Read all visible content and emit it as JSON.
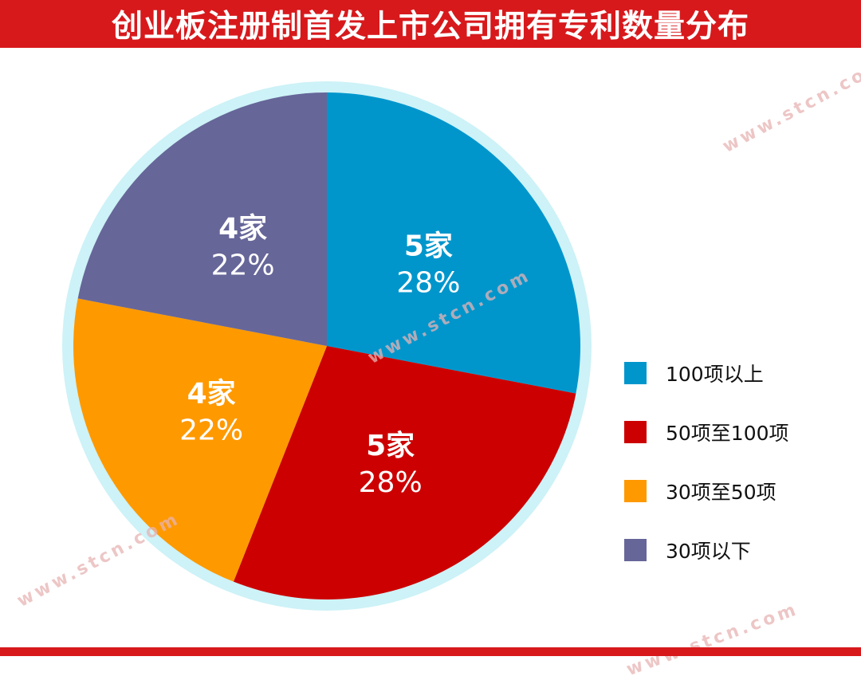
{
  "title": "创业板注册制首发上市公司拥有专利数量分布",
  "watermark_text": "www.stcn.com",
  "colors": {
    "header": "#d7191c",
    "ring": "#cdf2f7",
    "label": "#ffffff"
  },
  "chart_data": {
    "type": "pie",
    "title": "创业板注册制首发上市公司拥有专利数量分布",
    "start_angle_deg": 0,
    "direction": "clockwise",
    "slices": [
      {
        "name": "100项以上",
        "count_label": "5家",
        "value": 28,
        "percent_label": "28%",
        "color": "#0096cc"
      },
      {
        "name": "50项至100项",
        "count_label": "5家",
        "value": 28,
        "percent_label": "28%",
        "color": "#cc0000"
      },
      {
        "name": "30项至50项",
        "count_label": "4家",
        "value": 22,
        "percent_label": "22%",
        "color": "#ff9900"
      },
      {
        "name": "30项以下",
        "count_label": "4家",
        "value": 22,
        "percent_label": "22%",
        "color": "#666699"
      }
    ],
    "legend_position": "right"
  }
}
